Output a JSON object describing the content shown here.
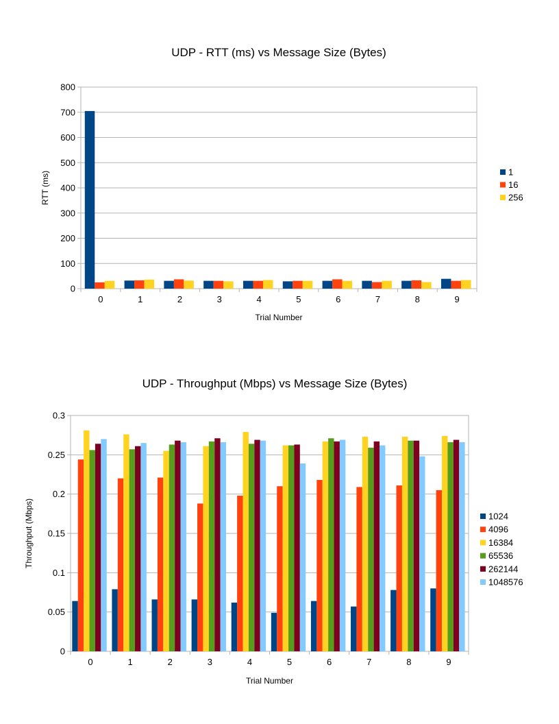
{
  "chart_data": [
    {
      "type": "bar",
      "title": "UDP - RTT (ms) vs Message Size (Bytes)",
      "xlabel": "Trial Number",
      "ylabel": "RTT (ms)",
      "ylim": [
        0,
        800
      ],
      "yticks": [
        "0",
        "100",
        "200",
        "300",
        "400",
        "500",
        "600",
        "700",
        "800"
      ],
      "categories": [
        "0",
        "1",
        "2",
        "3",
        "4",
        "5",
        "6",
        "7",
        "8",
        "9"
      ],
      "grid": true,
      "legend_position": "right",
      "series": [
        {
          "name": "1",
          "color": "#004586",
          "values": [
            705,
            32,
            31,
            31,
            31,
            29,
            31,
            31,
            31,
            39
          ]
        },
        {
          "name": "16",
          "color": "#ff420e",
          "values": [
            25,
            33,
            37,
            31,
            31,
            31,
            37,
            26,
            33,
            31
          ]
        },
        {
          "name": "256",
          "color": "#ffd320",
          "values": [
            31,
            36,
            32,
            29,
            34,
            31,
            31,
            31,
            26,
            34
          ]
        }
      ]
    },
    {
      "type": "bar",
      "title": "UDP - Throughput (Mbps) vs Message Size (Bytes)",
      "xlabel": "Trial Number",
      "ylabel": "Throughput (Mbps)",
      "ylim": [
        0,
        0.3
      ],
      "yticks": [
        "0",
        "0.05",
        "0.1",
        "0.15",
        "0.2",
        "0.25",
        "0.3"
      ],
      "categories": [
        "0",
        "1",
        "2",
        "3",
        "4",
        "5",
        "6",
        "7",
        "8",
        "9"
      ],
      "grid": true,
      "legend_position": "right",
      "series": [
        {
          "name": "1024",
          "color": "#004586",
          "values": [
            0.064,
            0.079,
            0.066,
            0.066,
            0.062,
            0.049,
            0.064,
            0.057,
            0.078,
            0.08
          ]
        },
        {
          "name": "4096",
          "color": "#ff420e",
          "values": [
            0.244,
            0.22,
            0.221,
            0.188,
            0.198,
            0.21,
            0.218,
            0.209,
            0.211,
            0.205
          ]
        },
        {
          "name": "16384",
          "color": "#ffd320",
          "values": [
            0.281,
            0.276,
            0.255,
            0.261,
            0.279,
            0.262,
            0.267,
            0.273,
            0.273,
            0.274
          ]
        },
        {
          "name": "65536",
          "color": "#579d1c",
          "values": [
            0.256,
            0.257,
            0.263,
            0.267,
            0.264,
            0.262,
            0.271,
            0.259,
            0.268,
            0.266
          ]
        },
        {
          "name": "262144",
          "color": "#7e0021",
          "values": [
            0.264,
            0.261,
            0.268,
            0.271,
            0.269,
            0.263,
            0.267,
            0.267,
            0.268,
            0.269
          ]
        },
        {
          "name": "1048576",
          "color": "#83caff",
          "values": [
            0.27,
            0.265,
            0.266,
            0.266,
            0.268,
            0.239,
            0.269,
            0.262,
            0.248,
            0.266
          ]
        }
      ]
    }
  ]
}
